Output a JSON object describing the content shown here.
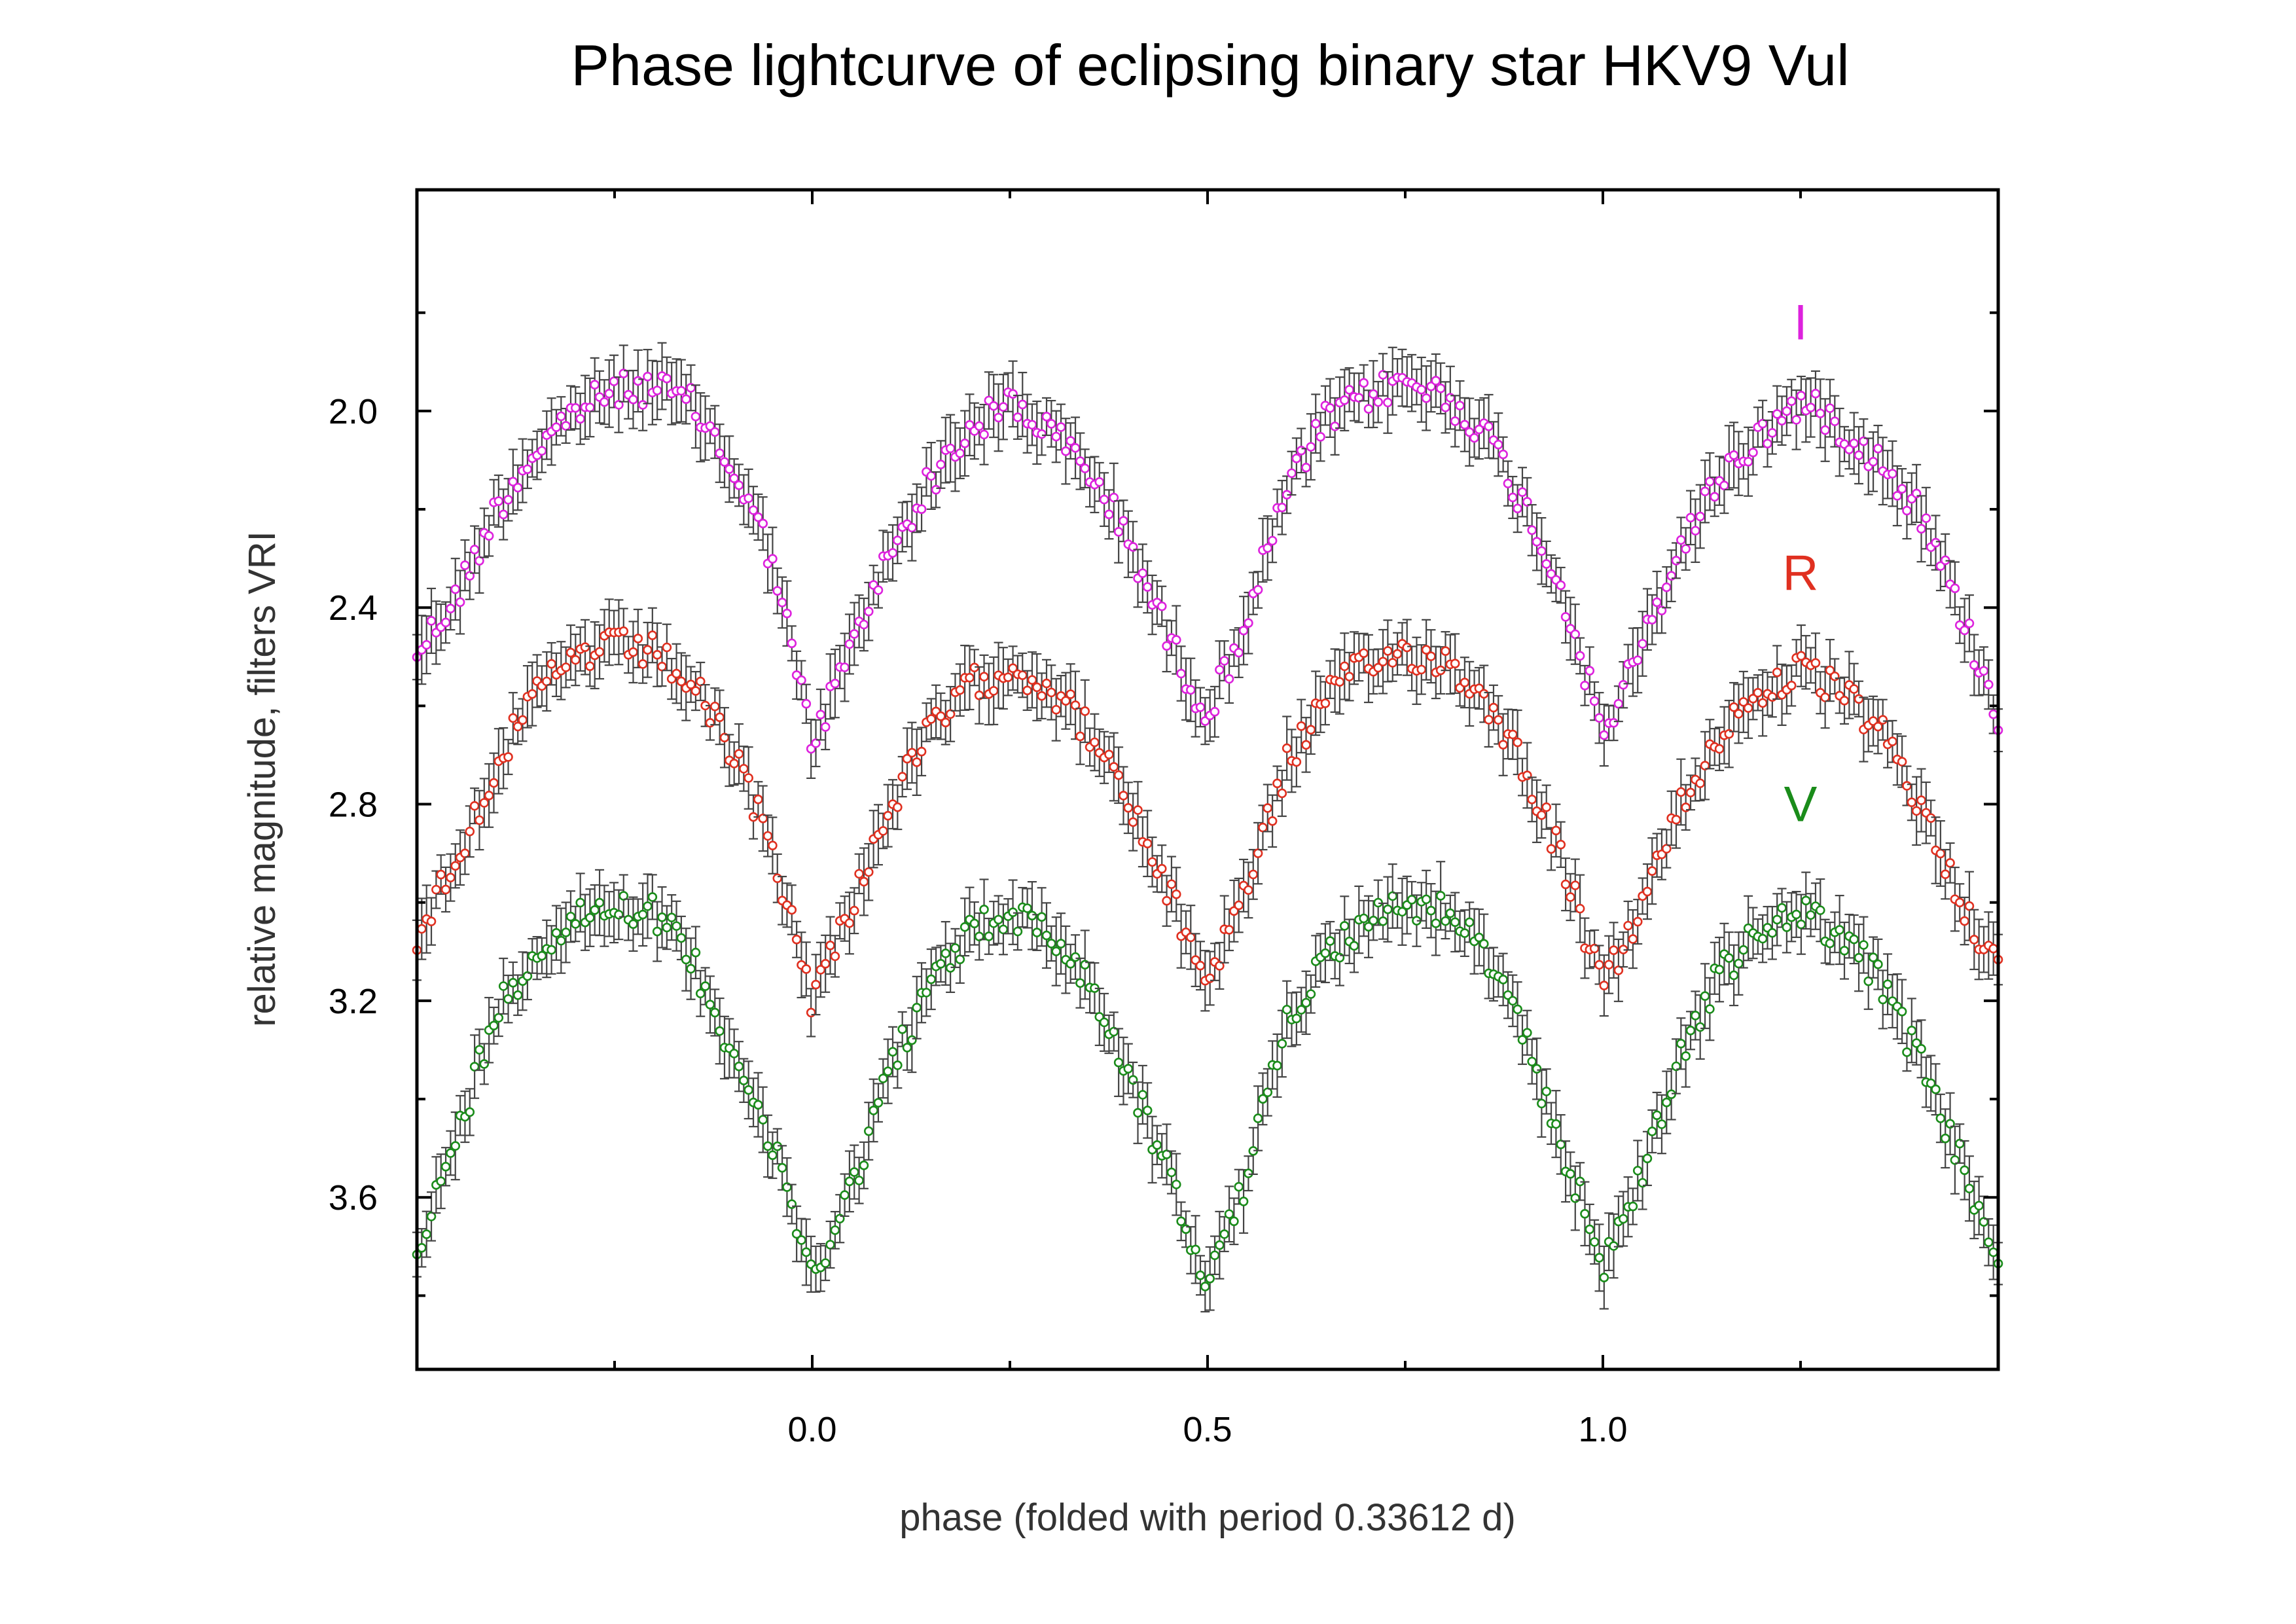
{
  "chart_data": {
    "type": "scatter",
    "title": "Phase lightcurve of eclipsing binary star HKV9 Vul",
    "xlabel": "phase  (folded with period 0.33612 d)",
    "ylabel": "relative magnitude, filters VRI",
    "xlim": [
      -0.5,
      1.5
    ],
    "ylim": [
      3.95,
      1.55
    ],
    "y_inverted": true,
    "x_ticks": [
      {
        "value": 0.0,
        "label": "0.0"
      },
      {
        "value": 0.5,
        "label": "0.5"
      },
      {
        "value": 1.0,
        "label": "1.0"
      }
    ],
    "x_minor_ticks": [
      -0.25,
      0.25,
      0.75,
      1.25
    ],
    "y_ticks": [
      {
        "value": 2.0,
        "label": "2.0"
      },
      {
        "value": 2.4,
        "label": "2.4"
      },
      {
        "value": 2.8,
        "label": "2.8"
      },
      {
        "value": 3.2,
        "label": "3.2"
      },
      {
        "value": 3.6,
        "label": "3.6"
      }
    ],
    "y_minor_ticks": [
      1.8,
      2.2,
      2.6,
      3.0,
      3.4,
      3.8
    ],
    "grid": false,
    "error_bars": true,
    "error_bar_color": "#444444",
    "series": [
      {
        "name": "I",
        "color": "#dd22dd",
        "label_position": {
          "x": 1.25,
          "y": 1.82
        },
        "points": [
          [
            -0.5,
            2.49
          ],
          [
            -0.45,
            2.38
          ],
          [
            -0.4,
            2.2
          ],
          [
            -0.35,
            2.08
          ],
          [
            -0.3,
            2.0
          ],
          [
            -0.25,
            1.96
          ],
          [
            -0.2,
            1.95
          ],
          [
            -0.15,
            1.99
          ],
          [
            -0.1,
            2.12
          ],
          [
            -0.05,
            2.3
          ],
          [
            0.0,
            2.68
          ],
          [
            0.05,
            2.48
          ],
          [
            0.1,
            2.28
          ],
          [
            0.15,
            2.14
          ],
          [
            0.2,
            2.04
          ],
          [
            0.25,
            1.98
          ],
          [
            0.3,
            2.04
          ],
          [
            0.35,
            2.12
          ],
          [
            0.4,
            2.26
          ],
          [
            0.45,
            2.46
          ],
          [
            0.5,
            2.62
          ],
          [
            0.55,
            2.42
          ],
          [
            0.6,
            2.16
          ],
          [
            0.65,
            2.02
          ],
          [
            0.7,
            1.97
          ],
          [
            0.75,
            1.94
          ],
          [
            0.8,
            1.97
          ],
          [
            0.85,
            2.04
          ],
          [
            0.9,
            2.19
          ],
          [
            0.95,
            2.37
          ],
          [
            1.0,
            2.66
          ],
          [
            1.05,
            2.48
          ],
          [
            1.1,
            2.27
          ],
          [
            1.15,
            2.13
          ],
          [
            1.2,
            2.05
          ],
          [
            1.25,
            1.98
          ],
          [
            1.3,
            2.03
          ],
          [
            1.35,
            2.1
          ],
          [
            1.4,
            2.2
          ],
          [
            1.45,
            2.4
          ],
          [
            1.5,
            2.62
          ]
        ]
      },
      {
        "name": "R",
        "color": "#e03020",
        "label_position": {
          "x": 1.25,
          "y": 2.33
        },
        "points": [
          [
            -0.5,
            3.07
          ],
          [
            -0.45,
            2.91
          ],
          [
            -0.4,
            2.72
          ],
          [
            -0.35,
            2.58
          ],
          [
            -0.3,
            2.5
          ],
          [
            -0.25,
            2.48
          ],
          [
            -0.2,
            2.49
          ],
          [
            -0.15,
            2.56
          ],
          [
            -0.1,
            2.7
          ],
          [
            -0.05,
            2.89
          ],
          [
            0.0,
            3.2
          ],
          [
            0.05,
            3.0
          ],
          [
            0.1,
            2.8
          ],
          [
            0.15,
            2.65
          ],
          [
            0.2,
            2.56
          ],
          [
            0.25,
            2.52
          ],
          [
            0.3,
            2.56
          ],
          [
            0.35,
            2.65
          ],
          [
            0.4,
            2.8
          ],
          [
            0.45,
            2.98
          ],
          [
            0.5,
            3.16
          ],
          [
            0.55,
            2.96
          ],
          [
            0.6,
            2.72
          ],
          [
            0.65,
            2.58
          ],
          [
            0.7,
            2.52
          ],
          [
            0.75,
            2.49
          ],
          [
            0.8,
            2.51
          ],
          [
            0.85,
            2.58
          ],
          [
            0.9,
            2.72
          ],
          [
            0.95,
            2.92
          ],
          [
            1.0,
            3.18
          ],
          [
            1.05,
            3.0
          ],
          [
            1.1,
            2.8
          ],
          [
            1.15,
            2.65
          ],
          [
            1.2,
            2.57
          ],
          [
            1.25,
            2.53
          ],
          [
            1.3,
            2.57
          ],
          [
            1.35,
            2.65
          ],
          [
            1.4,
            2.8
          ],
          [
            1.45,
            2.98
          ],
          [
            1.5,
            3.14
          ]
        ]
      },
      {
        "name": "V",
        "color": "#1a8c1a",
        "label_position": {
          "x": 1.25,
          "y": 2.8
        },
        "points": [
          [
            -0.5,
            3.72
          ],
          [
            -0.45,
            3.48
          ],
          [
            -0.4,
            3.22
          ],
          [
            -0.35,
            3.1
          ],
          [
            -0.3,
            3.03
          ],
          [
            -0.25,
            3.0
          ],
          [
            -0.2,
            3.02
          ],
          [
            -0.15,
            3.12
          ],
          [
            -0.1,
            3.3
          ],
          [
            -0.05,
            3.5
          ],
          [
            0.0,
            3.76
          ],
          [
            0.05,
            3.58
          ],
          [
            0.1,
            3.33
          ],
          [
            0.15,
            3.17
          ],
          [
            0.2,
            3.06
          ],
          [
            0.25,
            3.02
          ],
          [
            0.3,
            3.06
          ],
          [
            0.35,
            3.16
          ],
          [
            0.4,
            3.35
          ],
          [
            0.45,
            3.55
          ],
          [
            0.5,
            3.78
          ],
          [
            0.55,
            3.56
          ],
          [
            0.6,
            3.24
          ],
          [
            0.65,
            3.1
          ],
          [
            0.7,
            3.04
          ],
          [
            0.75,
            3.0
          ],
          [
            0.8,
            3.02
          ],
          [
            0.85,
            3.1
          ],
          [
            0.9,
            3.28
          ],
          [
            0.95,
            3.5
          ],
          [
            1.0,
            3.74
          ],
          [
            1.05,
            3.55
          ],
          [
            1.1,
            3.3
          ],
          [
            1.15,
            3.14
          ],
          [
            1.2,
            3.06
          ],
          [
            1.25,
            3.02
          ],
          [
            1.3,
            3.06
          ],
          [
            1.35,
            3.16
          ],
          [
            1.4,
            3.32
          ],
          [
            1.45,
            3.52
          ],
          [
            1.5,
            3.72
          ]
        ]
      }
    ]
  }
}
